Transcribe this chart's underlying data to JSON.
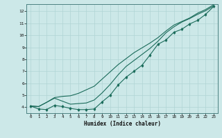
{
  "xlabel": "Humidex (Indice chaleur)",
  "xlim": [
    -0.5,
    23.5
  ],
  "ylim": [
    3.5,
    12.6
  ],
  "xticks": [
    0,
    1,
    2,
    3,
    4,
    5,
    6,
    7,
    8,
    9,
    10,
    11,
    12,
    13,
    14,
    15,
    16,
    17,
    18,
    19,
    20,
    21,
    22,
    23
  ],
  "yticks": [
    4,
    5,
    6,
    7,
    8,
    9,
    10,
    11,
    12
  ],
  "bg_color": "#cce8e8",
  "line_color": "#1a6b5a",
  "grid_color": "#b0d4d4",
  "x_values": [
    0,
    1,
    2,
    3,
    4,
    5,
    6,
    7,
    8,
    9,
    10,
    11,
    12,
    13,
    14,
    15,
    16,
    17,
    18,
    19,
    20,
    21,
    22,
    23
  ],
  "line1_y": [
    4.1,
    3.85,
    3.8,
    4.15,
    4.05,
    3.9,
    3.8,
    3.8,
    3.85,
    4.45,
    5.0,
    5.85,
    6.5,
    7.0,
    7.5,
    8.35,
    9.25,
    9.6,
    10.25,
    10.5,
    10.95,
    11.25,
    11.75,
    12.4
  ],
  "line2_y": [
    4.1,
    4.05,
    4.4,
    4.75,
    4.5,
    4.25,
    4.3,
    4.35,
    4.6,
    5.2,
    5.9,
    6.7,
    7.4,
    7.9,
    8.4,
    8.9,
    9.5,
    10.2,
    10.7,
    11.1,
    11.4,
    11.75,
    12.05,
    12.45
  ],
  "line3_y": [
    4.1,
    4.05,
    4.4,
    4.8,
    4.9,
    4.95,
    5.15,
    5.45,
    5.75,
    6.35,
    6.95,
    7.55,
    8.05,
    8.55,
    8.95,
    9.35,
    9.8,
    10.35,
    10.85,
    11.15,
    11.45,
    11.85,
    12.15,
    12.55
  ]
}
